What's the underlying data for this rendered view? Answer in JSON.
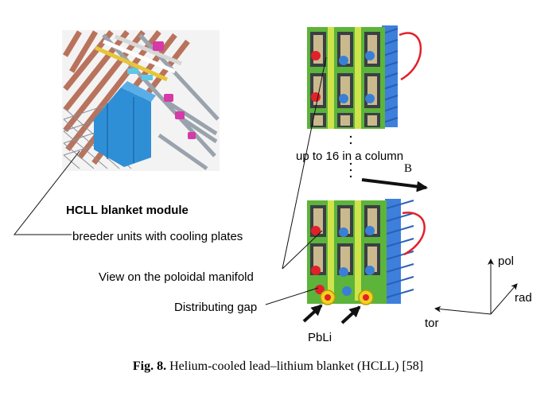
{
  "labels": {
    "module_title": "HCLL blanket module",
    "breeder_units": "breeder units with cooling plates",
    "column_note": "up to 16 in a column",
    "field": "B",
    "manifold_view": "View on the poloidal manifold",
    "distributing_gap": "Distributing gap",
    "pbli": "PbLi"
  },
  "axes": {
    "pol": "pol",
    "rad": "rad",
    "tor": "tor"
  },
  "caption": {
    "figure_label": "Fig. 8.",
    "text": "Helium-cooled lead–lithium blanket (HCLL) [58]"
  },
  "colors": {
    "module_blue": "#2f8fd6",
    "frame_steel": "#9aa3ad",
    "copper": "#b9735c",
    "magenta": "#d63aa8",
    "green": "#5cb43a",
    "yellow_green": "#cfe34a",
    "red": "#e2202a",
    "blue_pipe": "#3a7fd6",
    "yellow_ring": "#f3d21c",
    "backplate_blue": "#3e7fdc",
    "arrow": "#111111"
  }
}
